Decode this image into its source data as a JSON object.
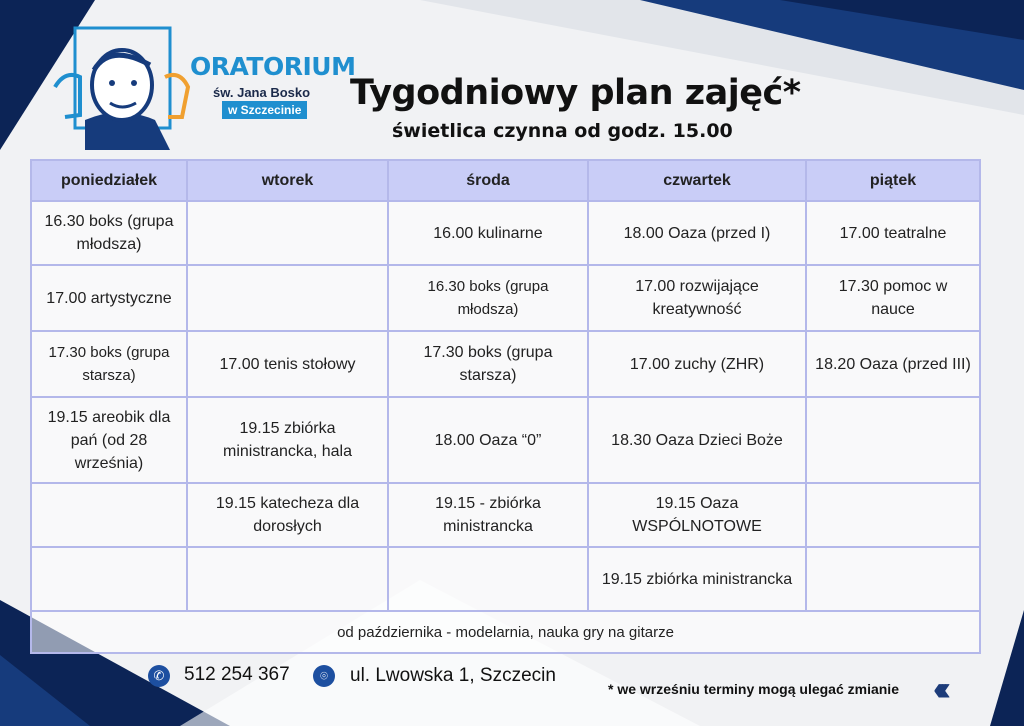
{
  "logo": {
    "name": "ORATORIUM",
    "sub": "św. Jana Bosko",
    "city": "w Szczecinie"
  },
  "title": "Tygodniowy plan zajęć*",
  "subtitle": "świetlica czynna od godz. 15.00",
  "schedule": {
    "headers": [
      "poniedziałek",
      "wtorek",
      "środa",
      "czwartek",
      "piątek"
    ],
    "rows": [
      [
        "16.30 boks (grupa młodsza)",
        "",
        "16.00 kulinarne",
        "18.00 Oaza (przed I)",
        "17.00 teatralne"
      ],
      [
        "17.00 artystyczne",
        "",
        "16.30 boks (grupa młodsza)",
        "17.00 rozwijające kreatywność",
        "17.30 pomoc w nauce"
      ],
      [
        "17.30 boks (grupa starsza)",
        "17.00 tenis stołowy",
        "17.30 boks (grupa starsza)",
        "17.00 zuchy (ZHR)",
        "18.20 Oaza (przed III)"
      ],
      [
        "19.15 areobik dla pań (od 28 września)",
        "19.15 zbiórka ministrancka, hala",
        "18.00 Oaza “0”",
        "18.30 Oaza Dzieci Boże",
        ""
      ],
      [
        "",
        "19.15 katecheza dla dorosłych",
        "19.15 - zbiórka ministrancka",
        "19.15 Oaza WSPÓLNOTOWE",
        ""
      ],
      [
        "",
        "",
        "",
        "19.15 zbiórka ministrancka",
        ""
      ]
    ],
    "footer": "od października - modelarnia, nauka gry na gitarze"
  },
  "contact": {
    "phone": "512 254 367",
    "address": "ul. Lwowska 1, Szczecin",
    "phone_icon": "phone-icon",
    "address_icon": "map-pin-icon"
  },
  "note": "* we wrześniu terminy mogą ulegać zmianie",
  "colors": {
    "navy": "#0d2a5e",
    "accent": "#1f8fcf",
    "header": "#c9cdf7",
    "border": "#b4b8ea"
  }
}
